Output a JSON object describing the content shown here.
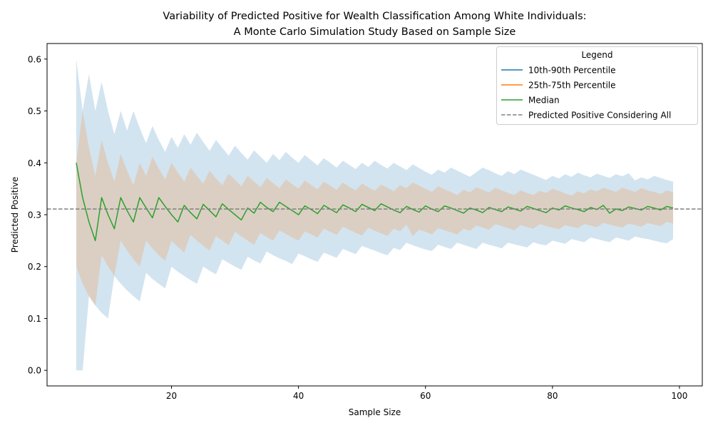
{
  "chart_data": {
    "type": "line",
    "title_lines": [
      "Variability of Predicted Positive for Wealth Classification Among White Individuals:",
      "A Monte Carlo Simulation Study Based on Sample Size"
    ],
    "xlabel": "Sample Size",
    "ylabel": "Predicted Positive",
    "xlim": [
      0.4,
      103.6
    ],
    "ylim": [
      -0.03,
      0.63
    ],
    "xticks": [
      20,
      40,
      60,
      80,
      100
    ],
    "yticks": [
      0.0,
      0.1,
      0.2,
      0.3,
      0.4,
      0.5,
      0.6
    ],
    "xtick_labels": [
      "20",
      "40",
      "60",
      "80",
      "100"
    ],
    "ytick_labels": [
      "0.0",
      "0.1",
      "0.2",
      "0.3",
      "0.4",
      "0.5",
      "0.6"
    ],
    "grid": false,
    "legend": {
      "title": "Legend",
      "placement": "top-right",
      "entries": [
        {
          "label": "10th-90th Percentile",
          "color": "#1f77b4",
          "style": "solid"
        },
        {
          "label": "25th-75th Percentile",
          "color": "#ff7f0e",
          "style": "solid"
        },
        {
          "label": "Median",
          "color": "#2ca02c",
          "style": "solid"
        },
        {
          "label": "Predicted Positive Considering All",
          "color": "#808080",
          "style": "dashed"
        }
      ]
    },
    "reference_line": {
      "name": "Predicted Positive Considering All",
      "y": 0.311,
      "color": "#808080"
    },
    "x": [
      5,
      6,
      7,
      8,
      9,
      10,
      11,
      12,
      13,
      14,
      15,
      16,
      17,
      18,
      19,
      20,
      21,
      22,
      23,
      24,
      25,
      26,
      27,
      28,
      29,
      30,
      31,
      32,
      33,
      34,
      35,
      36,
      37,
      38,
      39,
      40,
      41,
      42,
      43,
      44,
      45,
      46,
      47,
      48,
      49,
      50,
      51,
      52,
      53,
      54,
      55,
      56,
      57,
      58,
      59,
      60,
      61,
      62,
      63,
      64,
      65,
      66,
      67,
      68,
      69,
      70,
      71,
      72,
      73,
      74,
      75,
      76,
      77,
      78,
      79,
      80,
      81,
      82,
      83,
      84,
      85,
      86,
      87,
      88,
      89,
      90,
      91,
      92,
      93,
      94,
      95,
      96,
      97,
      98,
      99
    ],
    "series": [
      {
        "name": "Median",
        "color": "#2ca02c",
        "values": [
          0.4,
          0.333,
          0.286,
          0.25,
          0.333,
          0.3,
          0.273,
          0.333,
          0.308,
          0.286,
          0.333,
          0.313,
          0.294,
          0.333,
          0.316,
          0.3,
          0.286,
          0.318,
          0.304,
          0.292,
          0.32,
          0.308,
          0.296,
          0.321,
          0.31,
          0.3,
          0.29,
          0.313,
          0.303,
          0.324,
          0.314,
          0.306,
          0.324,
          0.316,
          0.308,
          0.3,
          0.317,
          0.31,
          0.302,
          0.318,
          0.311,
          0.304,
          0.319,
          0.313,
          0.306,
          0.32,
          0.314,
          0.308,
          0.321,
          0.315,
          0.309,
          0.304,
          0.316,
          0.31,
          0.305,
          0.317,
          0.311,
          0.306,
          0.317,
          0.313,
          0.308,
          0.303,
          0.313,
          0.309,
          0.304,
          0.314,
          0.31,
          0.306,
          0.315,
          0.311,
          0.307,
          0.316,
          0.312,
          0.308,
          0.304,
          0.313,
          0.309,
          0.317,
          0.313,
          0.31,
          0.306,
          0.314,
          0.31,
          0.318,
          0.303,
          0.311,
          0.308,
          0.315,
          0.312,
          0.309,
          0.316,
          0.313,
          0.309,
          0.316,
          0.313
        ]
      },
      {
        "name": "25th-75th Percentile",
        "color": "#ff7f0e",
        "lower": [
          0.2,
          0.167,
          0.143,
          0.125,
          0.222,
          0.2,
          0.182,
          0.25,
          0.231,
          0.214,
          0.2,
          0.25,
          0.235,
          0.222,
          0.211,
          0.25,
          0.238,
          0.227,
          0.261,
          0.25,
          0.24,
          0.231,
          0.259,
          0.25,
          0.241,
          0.267,
          0.258,
          0.25,
          0.242,
          0.265,
          0.257,
          0.25,
          0.27,
          0.263,
          0.256,
          0.25,
          0.268,
          0.262,
          0.256,
          0.273,
          0.267,
          0.261,
          0.277,
          0.271,
          0.265,
          0.26,
          0.275,
          0.269,
          0.264,
          0.259,
          0.273,
          0.268,
          0.281,
          0.259,
          0.271,
          0.267,
          0.262,
          0.274,
          0.27,
          0.266,
          0.262,
          0.273,
          0.269,
          0.279,
          0.275,
          0.271,
          0.282,
          0.278,
          0.274,
          0.27,
          0.28,
          0.276,
          0.273,
          0.282,
          0.278,
          0.275,
          0.272,
          0.28,
          0.277,
          0.274,
          0.282,
          0.279,
          0.276,
          0.284,
          0.281,
          0.278,
          0.275,
          0.283,
          0.28,
          0.277,
          0.284,
          0.281,
          0.278,
          0.286,
          0.283
        ],
        "upper": [
          0.4,
          0.5,
          0.429,
          0.375,
          0.444,
          0.4,
          0.364,
          0.417,
          0.385,
          0.357,
          0.4,
          0.375,
          0.412,
          0.389,
          0.368,
          0.4,
          0.381,
          0.364,
          0.391,
          0.375,
          0.36,
          0.385,
          0.37,
          0.357,
          0.379,
          0.367,
          0.355,
          0.375,
          0.364,
          0.353,
          0.371,
          0.361,
          0.351,
          0.368,
          0.359,
          0.35,
          0.366,
          0.357,
          0.349,
          0.364,
          0.356,
          0.348,
          0.362,
          0.354,
          0.347,
          0.36,
          0.353,
          0.346,
          0.358,
          0.352,
          0.345,
          0.357,
          0.351,
          0.362,
          0.356,
          0.35,
          0.344,
          0.355,
          0.349,
          0.344,
          0.338,
          0.348,
          0.343,
          0.353,
          0.348,
          0.343,
          0.352,
          0.347,
          0.342,
          0.338,
          0.347,
          0.342,
          0.338,
          0.346,
          0.342,
          0.35,
          0.346,
          0.341,
          0.337,
          0.345,
          0.341,
          0.349,
          0.345,
          0.352,
          0.348,
          0.344,
          0.352,
          0.348,
          0.344,
          0.351,
          0.347,
          0.344,
          0.34,
          0.347,
          0.343
        ]
      },
      {
        "name": "10th-90th Percentile",
        "color": "#1f77b4",
        "lower": [
          0.0,
          0.0,
          0.143,
          0.125,
          0.111,
          0.1,
          0.182,
          0.167,
          0.154,
          0.143,
          0.133,
          0.188,
          0.176,
          0.167,
          0.158,
          0.2,
          0.19,
          0.182,
          0.174,
          0.167,
          0.2,
          0.192,
          0.185,
          0.214,
          0.207,
          0.2,
          0.194,
          0.219,
          0.212,
          0.206,
          0.229,
          0.222,
          0.216,
          0.211,
          0.205,
          0.225,
          0.22,
          0.214,
          0.209,
          0.227,
          0.222,
          0.217,
          0.234,
          0.229,
          0.224,
          0.24,
          0.235,
          0.231,
          0.226,
          0.222,
          0.236,
          0.232,
          0.246,
          0.241,
          0.237,
          0.233,
          0.23,
          0.242,
          0.238,
          0.234,
          0.246,
          0.242,
          0.238,
          0.234,
          0.246,
          0.242,
          0.239,
          0.235,
          0.246,
          0.243,
          0.24,
          0.237,
          0.247,
          0.243,
          0.241,
          0.25,
          0.247,
          0.244,
          0.253,
          0.25,
          0.247,
          0.256,
          0.253,
          0.25,
          0.247,
          0.256,
          0.253,
          0.25,
          0.258,
          0.255,
          0.253,
          0.25,
          0.247,
          0.245,
          0.253
        ],
        "upper": [
          0.6,
          0.5,
          0.571,
          0.5,
          0.556,
          0.5,
          0.455,
          0.5,
          0.462,
          0.5,
          0.467,
          0.438,
          0.471,
          0.444,
          0.421,
          0.45,
          0.429,
          0.455,
          0.435,
          0.458,
          0.44,
          0.423,
          0.444,
          0.429,
          0.414,
          0.433,
          0.419,
          0.406,
          0.424,
          0.412,
          0.4,
          0.417,
          0.405,
          0.421,
          0.41,
          0.4,
          0.415,
          0.405,
          0.395,
          0.409,
          0.4,
          0.391,
          0.404,
          0.396,
          0.388,
          0.4,
          0.392,
          0.404,
          0.396,
          0.389,
          0.4,
          0.393,
          0.386,
          0.397,
          0.39,
          0.383,
          0.377,
          0.387,
          0.381,
          0.391,
          0.385,
          0.379,
          0.373,
          0.382,
          0.391,
          0.386,
          0.38,
          0.375,
          0.384,
          0.378,
          0.387,
          0.382,
          0.377,
          0.372,
          0.367,
          0.375,
          0.37,
          0.378,
          0.373,
          0.381,
          0.376,
          0.372,
          0.379,
          0.375,
          0.371,
          0.378,
          0.374,
          0.38,
          0.366,
          0.372,
          0.368,
          0.375,
          0.371,
          0.367,
          0.364
        ]
      }
    ]
  }
}
